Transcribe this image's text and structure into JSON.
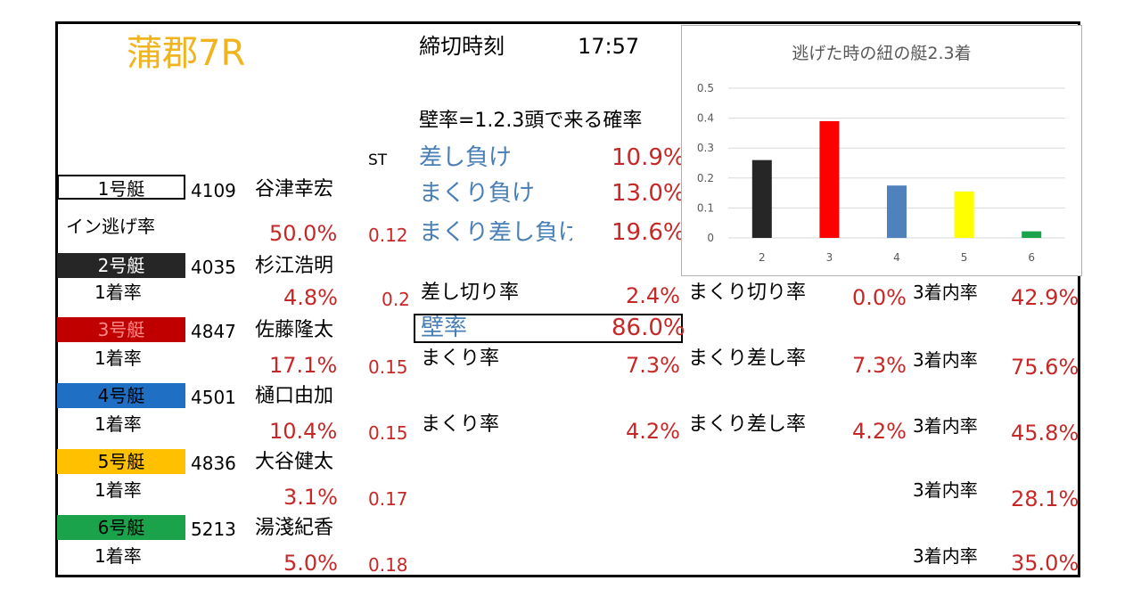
{
  "race": {
    "title": "蒲郡7R",
    "deadline_label": "締切時刻",
    "deadline_time": "17:57",
    "st_header": "ST"
  },
  "wall_section": {
    "heading": "壁率=1.2.3頭で来る確率",
    "items": [
      {
        "label": "差し負け",
        "value": "10.9%"
      },
      {
        "label": "まくり負け",
        "value": "13.0%"
      },
      {
        "label": "まくり差し負け",
        "value": "19.6%"
      }
    ],
    "wall_label": "壁率",
    "wall_value": "86.0%"
  },
  "boats": [
    {
      "badge": "1号艇",
      "reg": "4109",
      "name": "谷津幸宏",
      "rate_label": "イン逃げ率",
      "rate": "50.0%",
      "st": "0.12",
      "color": "#ffffff",
      "text_color": "#000000"
    },
    {
      "badge": "2号艇",
      "reg": "4035",
      "name": "杉江浩明",
      "rate_label": "1着率",
      "rate": "4.8%",
      "st": "0.2",
      "color": "#262626",
      "text_color": "#ffffff",
      "row": {
        "l1": "差し切り率",
        "v1": "2.4%",
        "l2": "まくり切り率",
        "v2": "0.0%",
        "l3": "3着内率",
        "v3": "42.9%"
      }
    },
    {
      "badge": "3号艇",
      "reg": "4847",
      "name": "佐藤隆太",
      "rate_label": "1着率",
      "rate": "17.1%",
      "st": "0.15",
      "color": "#c00000",
      "text_color": "#c00000",
      "row": {
        "l1": "まくり率",
        "v1": "7.3%",
        "l2": "まくり差し率",
        "v2": "7.3%",
        "l3": "3着内率",
        "v3": "75.6%"
      }
    },
    {
      "badge": "4号艇",
      "reg": "4501",
      "name": "樋口由加",
      "rate_label": "1着率",
      "rate": "10.4%",
      "st": "0.15",
      "color": "#1f6fc4",
      "text_color": "#000000",
      "row": {
        "l1": "まくり率",
        "v1": "4.2%",
        "l2": "まくり差し率",
        "v2": "4.2%",
        "l3": "3着内率",
        "v3": "45.8%"
      }
    },
    {
      "badge": "5号艇",
      "reg": "4836",
      "name": "大谷健太",
      "rate_label": "1着率",
      "rate": "3.1%",
      "st": "0.17",
      "color": "#ffc000",
      "text_color": "#000000",
      "row": {
        "l3": "3着内率",
        "v3": "28.1%"
      }
    },
    {
      "badge": "6号艇",
      "reg": "5213",
      "name": "湯淺紀香",
      "rate_label": "1着率",
      "rate": "5.0%",
      "st": "0.18",
      "color": "#1aa34a",
      "text_color": "#000000",
      "row": {
        "l3": "3着内率",
        "v3": "35.0%"
      }
    }
  ],
  "chart_data": {
    "type": "bar",
    "title": "逃げた時の紐の艇2.3着",
    "categories": [
      "2",
      "3",
      "4",
      "5",
      "6"
    ],
    "values": [
      0.26,
      0.39,
      0.175,
      0.155,
      0.022
    ],
    "colors": [
      "#262626",
      "#ff0000",
      "#4f81bd",
      "#ffff00",
      "#1aa34a"
    ],
    "ylim": [
      0,
      0.5
    ],
    "yticks": [
      "0",
      "0.1",
      "0.2",
      "0.3",
      "0.4",
      "0.5"
    ],
    "grid": true,
    "legend": "none"
  }
}
